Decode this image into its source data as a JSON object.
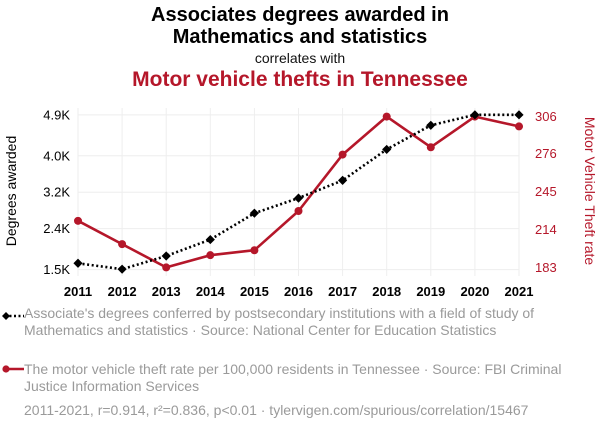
{
  "header": {
    "title_line1": "Associates degrees awarded in",
    "title_line2": "Mathematics and statistics",
    "subtitle": "correlates with",
    "title2": "Motor vehicle thefts in Tennessee"
  },
  "colors": {
    "series1": "#000000",
    "series2": "#b5172a",
    "grid": "#eeeeee",
    "muted_text": "#9a9a9a"
  },
  "chart_data": {
    "type": "line",
    "x": [
      2011,
      2012,
      2013,
      2014,
      2015,
      2016,
      2017,
      2018,
      2019,
      2020,
      2021
    ],
    "grid": true,
    "yaxis_left": {
      "label": "Degrees awarded",
      "ticks": [
        1500,
        2400,
        3200,
        4000,
        4900
      ],
      "tick_labels": [
        "1.5K",
        "2.4K",
        "3.2K",
        "4.0K",
        "4.9K"
      ],
      "range": [
        1360,
        5050
      ]
    },
    "yaxis_right": {
      "label": "Motor Vehicle Theft rate",
      "ticks": [
        183,
        214,
        245,
        276,
        306
      ],
      "tick_labels": [
        "183",
        "214",
        "245",
        "276",
        "306"
      ],
      "range": [
        176,
        313
      ]
    },
    "series": [
      {
        "name": "Associate's degrees conferred by postsecondary institutions with a field of study of Mathematics and statistics · Source: National Center for Education Statistics",
        "axis": "left",
        "style": "dotted",
        "marker": "diamond",
        "color": "#000000",
        "values": [
          1640,
          1510,
          1800,
          2160,
          2740,
          3070,
          3460,
          4140,
          4670,
          4900,
          4900
        ]
      },
      {
        "name": "The motor vehicle theft rate per 100,000 residents in Tennessee · Source: FBI Criminal Justice Information Services",
        "axis": "right",
        "style": "solid",
        "marker": "circle",
        "color": "#b5172a",
        "values": [
          221,
          202,
          183,
          193,
          197,
          229,
          275,
          306,
          281,
          306,
          298
        ]
      }
    ]
  },
  "footer": {
    "text": "2011-2021, r=0.914, r²=0.836, p<0.01 · tylervigen.com/spurious/correlation/15467"
  }
}
